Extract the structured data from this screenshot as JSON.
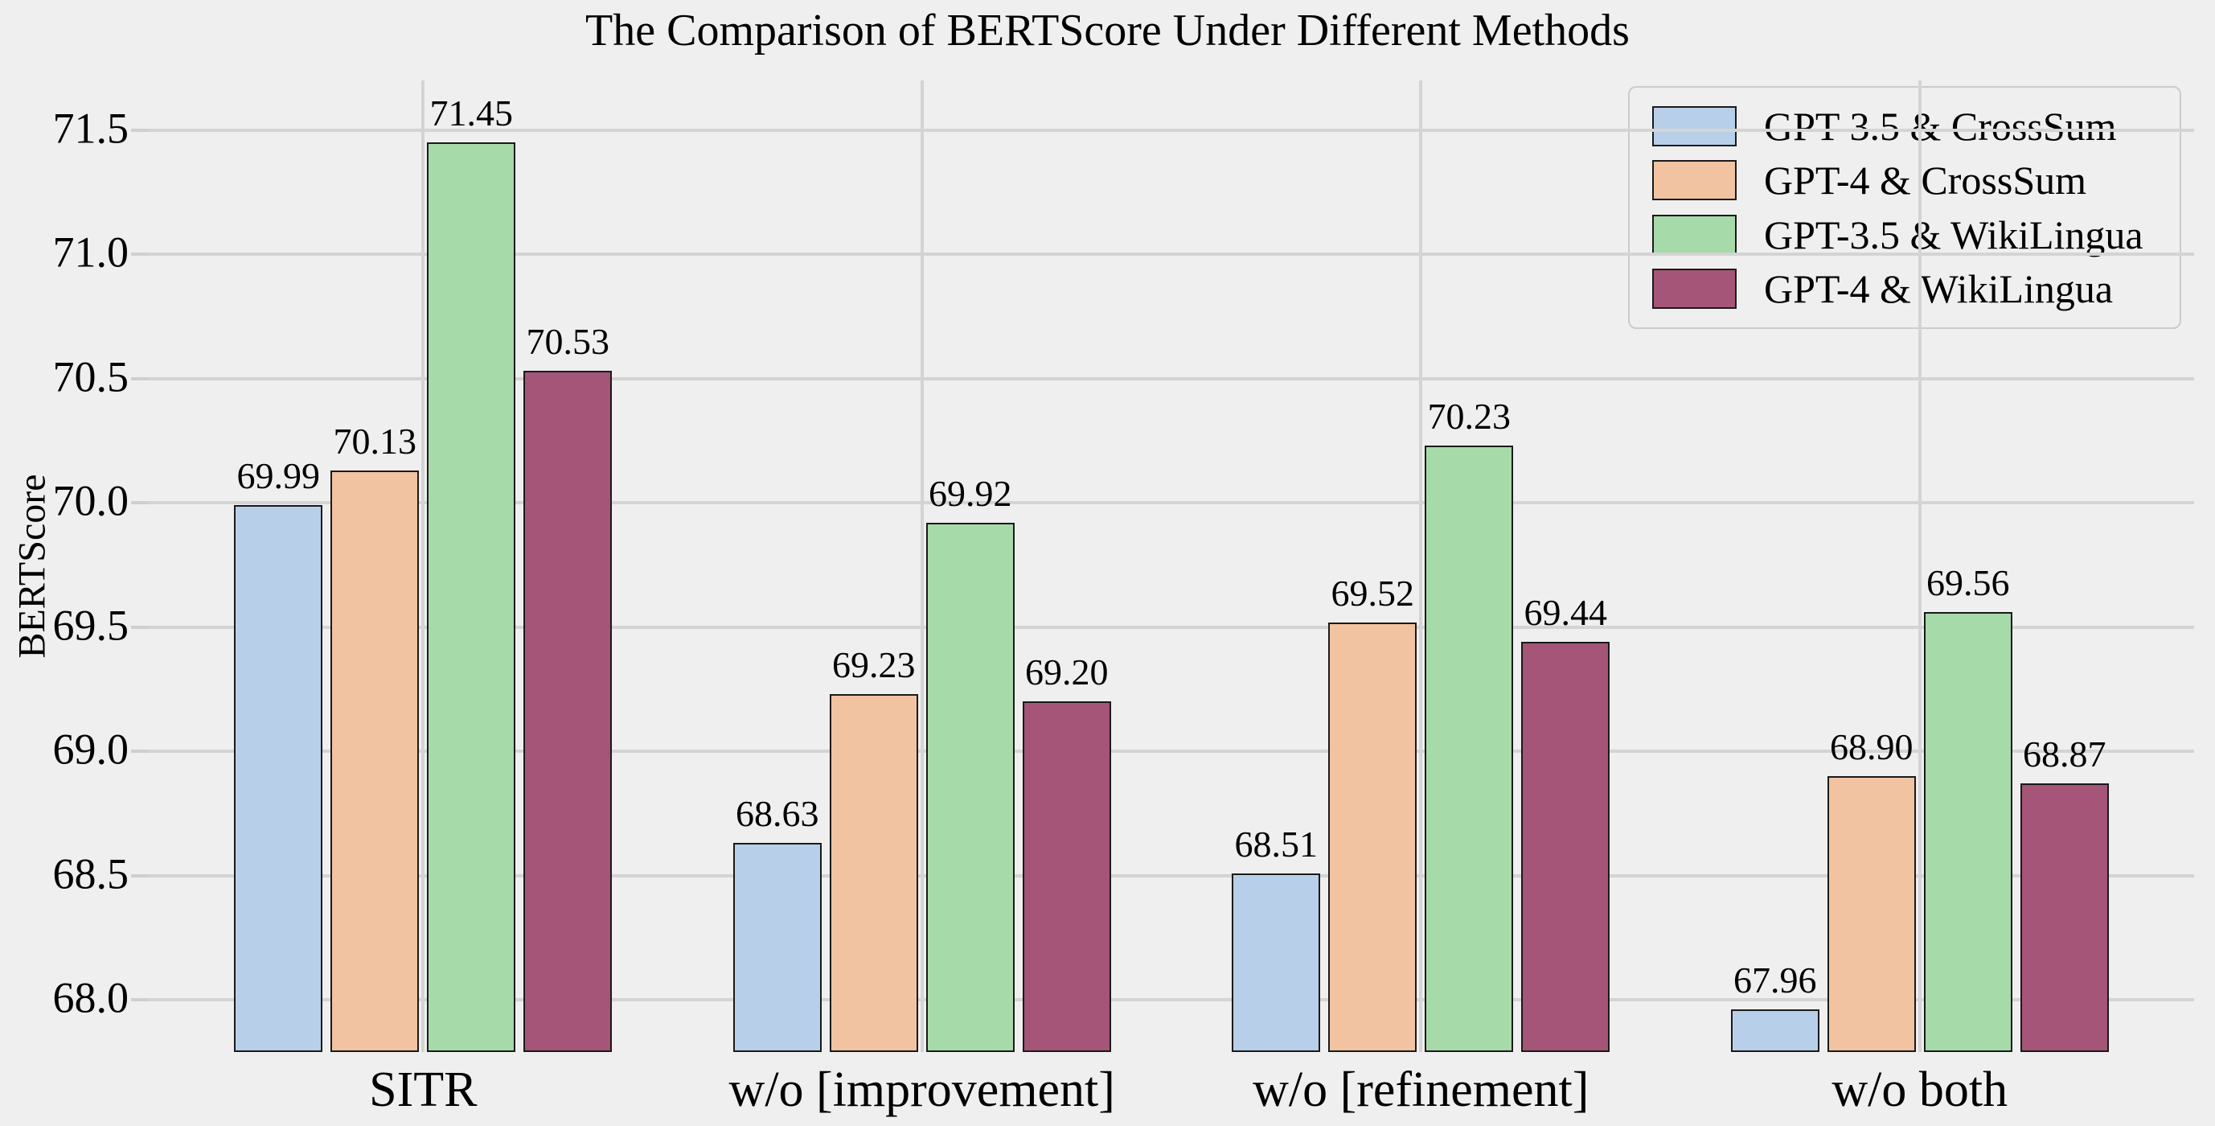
{
  "figure": {
    "background": "#efefef"
  },
  "colors": {
    "background": "#efefef",
    "gridline": "#d4d4d4",
    "tick": "#cfcfcf",
    "bar_edge": "#1a1a1a",
    "legend_border": "#cbcbcb",
    "text": "#000000"
  },
  "chart_data": {
    "type": "bar",
    "title": "The Comparison of BERTScore Under Different Methods",
    "xlabel": "",
    "ylabel": "BERTScore",
    "categories": [
      "SITR",
      "w/o [improvement]",
      "w/o [refinement]",
      "w/o both"
    ],
    "series": [
      {
        "name": "GPT-3.5 & CrossSum",
        "color": "#b8cfe9",
        "values": [
          69.99,
          68.63,
          68.51,
          67.96
        ]
      },
      {
        "name": "GPT-4 & CrossSum",
        "color": "#f1c3a1",
        "values": [
          70.13,
          69.23,
          69.52,
          68.9
        ]
      },
      {
        "name": "GPT-3.5 & WikiLingua",
        "color": "#a7daa9",
        "values": [
          71.45,
          69.92,
          70.23,
          69.56
        ]
      },
      {
        "name": "GPT-4 & WikiLingua",
        "color": "#a45578",
        "values": [
          70.53,
          69.2,
          69.44,
          68.87
        ]
      }
    ],
    "ylim": [
      67.79,
      71.7
    ],
    "yticks": [
      68.0,
      68.5,
      69.0,
      69.5,
      70.0,
      70.5,
      71.0,
      71.5
    ],
    "ytick_labels": [
      "68.0",
      "68.5",
      "69.0",
      "69.5",
      "70.0",
      "70.5",
      "71.0",
      "71.5"
    ],
    "grid": "both",
    "legend_position": "upper right",
    "value_labels": "each bar, 2 decimal places"
  }
}
